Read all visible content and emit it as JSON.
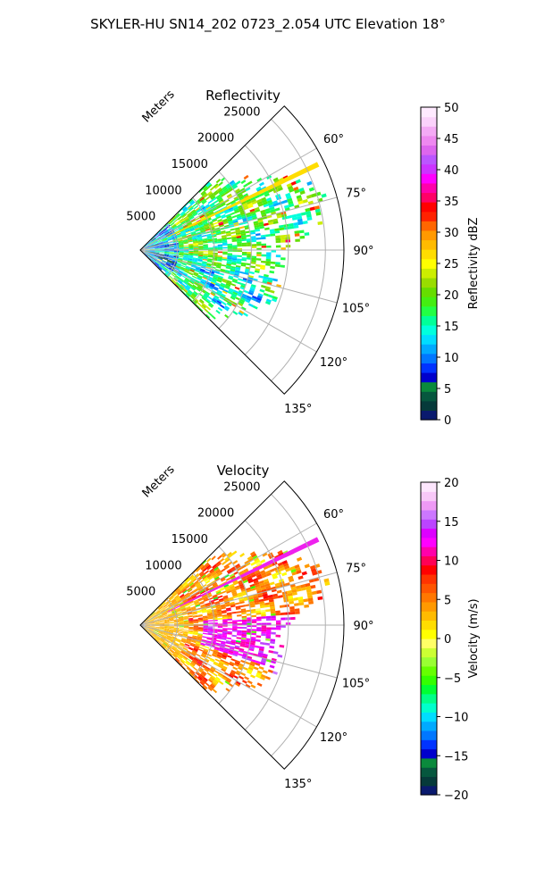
{
  "figure": {
    "suptitle": "SKYLER-HU  SN14_202  0723_2.054 UTC Elevation 18°"
  },
  "chart_data": [
    {
      "type": "heatmap",
      "projection": "polar-sector",
      "title": "Reflectivity",
      "radial_label": "Meters",
      "radial_ticks": [
        5000,
        10000,
        15000,
        20000,
        25000
      ],
      "radial_tick_labels": [
        "5000",
        "10000",
        "15000",
        "20000",
        "25000"
      ],
      "rlim": [
        0,
        27500
      ],
      "theta_ticks": [
        60,
        75,
        90,
        105,
        120,
        135
      ],
      "theta_tick_labels": [
        "60°",
        "75°",
        "90°",
        "105°",
        "120°",
        "135°"
      ],
      "theta_range_deg": [
        45,
        135
      ],
      "grid": true,
      "colorbar": {
        "label": "Reflectivity dBZ",
        "ticks": [
          0,
          5,
          10,
          15,
          20,
          25,
          30,
          35,
          40,
          45,
          50
        ],
        "tick_labels": [
          "0",
          "5",
          "10",
          "15",
          "20",
          "25",
          "30",
          "35",
          "40",
          "45",
          "50"
        ],
        "range": [
          0,
          50
        ]
      }
    },
    {
      "type": "heatmap",
      "projection": "polar-sector",
      "title": "Velocity",
      "radial_label": "Meters",
      "radial_ticks": [
        5000,
        10000,
        15000,
        20000,
        25000
      ],
      "radial_tick_labels": [
        "5000",
        "10000",
        "15000",
        "20000",
        "25000"
      ],
      "rlim": [
        0,
        27500
      ],
      "theta_ticks": [
        60,
        75,
        90,
        105,
        120,
        135
      ],
      "theta_tick_labels": [
        "60°",
        "75°",
        "90°",
        "105°",
        "120°",
        "135°"
      ],
      "theta_range_deg": [
        45,
        135
      ],
      "grid": true,
      "colorbar": {
        "label": "Velocity (m/s)",
        "ticks": [
          -20,
          -15,
          -10,
          -5,
          0,
          5,
          10,
          15,
          20
        ],
        "tick_labels": [
          "−20",
          "−15",
          "−10",
          "−5",
          "0",
          "5",
          "10",
          "15",
          "20"
        ],
        "range": [
          -20,
          20
        ]
      }
    }
  ]
}
